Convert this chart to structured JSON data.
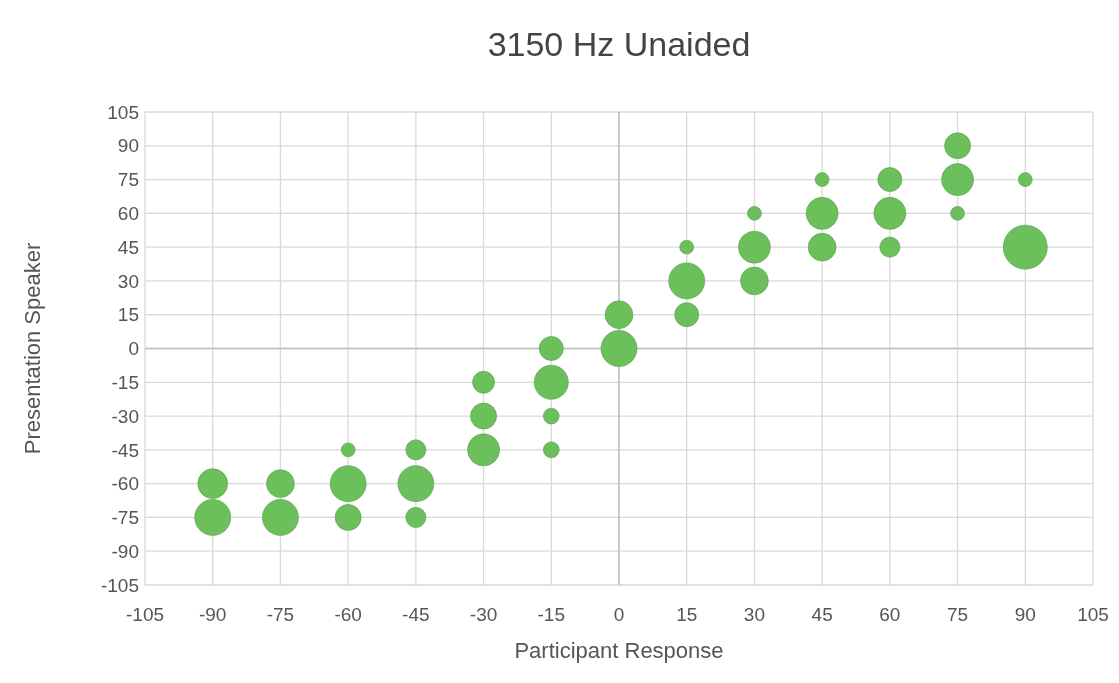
{
  "chart_data": {
    "type": "bubble",
    "title": "3150 Hz Unaided",
    "xlabel": "Participant Response",
    "ylabel": "Presentation Speaker",
    "xlim": [
      -105,
      105
    ],
    "xticks": [
      -105,
      -90,
      -75,
      -60,
      -45,
      -30,
      -15,
      0,
      15,
      30,
      45,
      60,
      75,
      90,
      105
    ],
    "ylim": [
      -105,
      105
    ],
    "yticks": [
      -105,
      -90,
      -75,
      -60,
      -45,
      -30,
      -15,
      0,
      15,
      30,
      45,
      60,
      75,
      90,
      105
    ],
    "grid": true,
    "series": [
      {
        "color": "#6cc05c",
        "x": [
          -90,
          -90,
          -75,
          -75,
          -60,
          -60,
          -60,
          -45,
          -45,
          -45,
          -30,
          -30,
          -30,
          -15,
          -15,
          -15,
          -15,
          0,
          0,
          15,
          15,
          15,
          30,
          30,
          30,
          45,
          45,
          45,
          60,
          60,
          60,
          75,
          75,
          75,
          90,
          90
        ],
        "values": [
          -60,
          -75,
          -60,
          -75,
          -45,
          -60,
          -75,
          -45,
          -60,
          -75,
          -15,
          -30,
          -45,
          0,
          -15,
          -30,
          -45,
          15,
          0,
          45,
          30,
          15,
          60,
          45,
          30,
          75,
          60,
          45,
          75,
          60,
          45,
          90,
          75,
          60,
          75,
          45
        ],
        "sizes": [
          0.46,
          0.67,
          0.4,
          0.67,
          0.1,
          0.67,
          0.35,
          0.21,
          0.67,
          0.21,
          0.25,
          0.35,
          0.53,
          0.3,
          0.6,
          0.13,
          0.13,
          0.4,
          0.67,
          0.1,
          0.67,
          0.3,
          0.1,
          0.53,
          0.4,
          0.1,
          0.53,
          0.4,
          0.3,
          0.53,
          0.21,
          0.35,
          0.53,
          0.1,
          0.1,
          1
        ]
      }
    ]
  }
}
